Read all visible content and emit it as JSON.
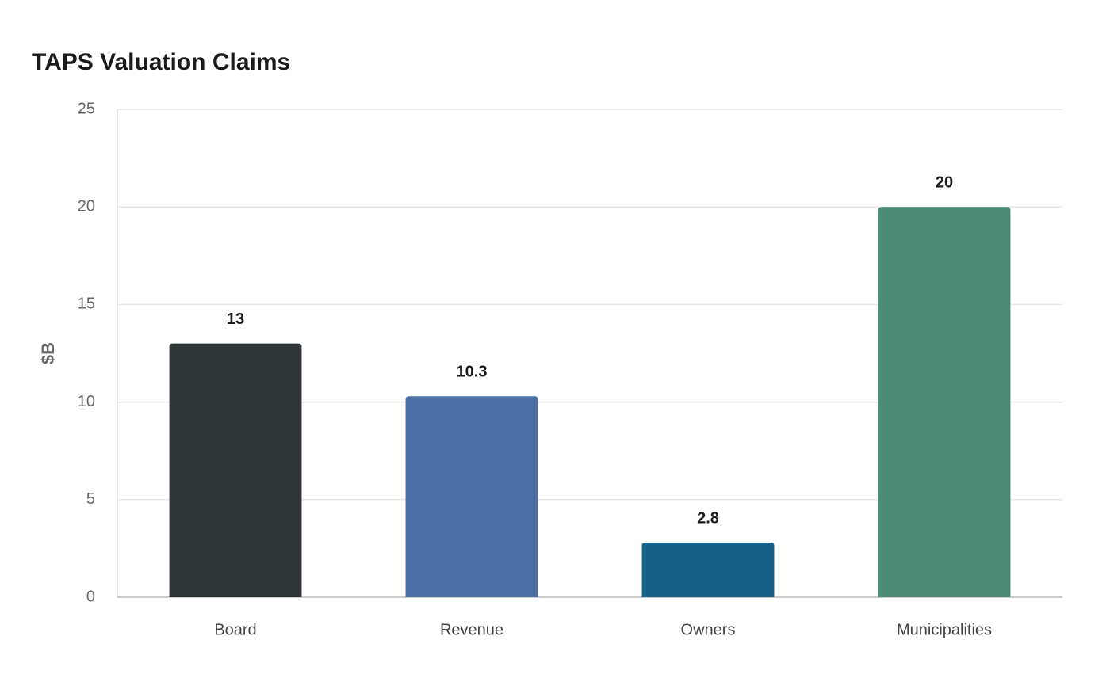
{
  "chart_data": {
    "type": "bar",
    "title": "TAPS Valuation Claims",
    "y_label": "$B",
    "categories": [
      "Board",
      "Revenue",
      "Owners",
      "Municipalities"
    ],
    "values": [
      13,
      10.3,
      2.8,
      20
    ],
    "colors": [
      "#2e3638",
      "#4a6fa5",
      "#176087",
      "#4e8c79"
    ],
    "ylim": [
      0,
      25
    ],
    "yticks": [
      0,
      5,
      10,
      15,
      20,
      25
    ],
    "grid": true
  }
}
